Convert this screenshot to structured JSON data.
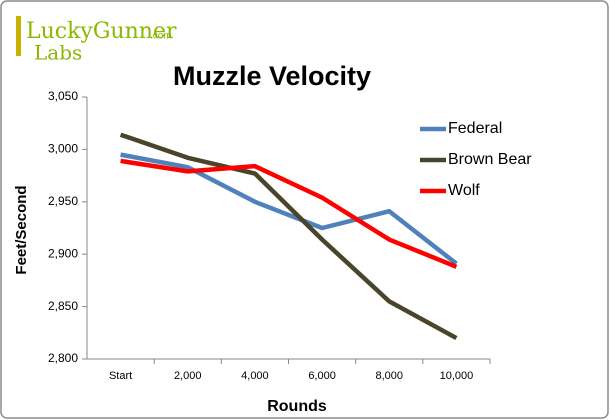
{
  "logo": {
    "brand": "LuckyGunner",
    "suffix": ".com",
    "sub": "Labs"
  },
  "chart_data": {
    "type": "line",
    "title": "Muzzle Velocity",
    "x_label": "Rounds",
    "y_label": "Feet/Second",
    "categories": [
      "Start",
      "2,000",
      "4,000",
      "6,000",
      "8,000",
      "10,000"
    ],
    "series": [
      {
        "name": "Federal",
        "color": "#4f81bd",
        "values": [
          2995,
          2983,
          2950,
          2925,
          2941,
          2891
        ]
      },
      {
        "name": "Brown Bear",
        "color": "#4a452a",
        "values": [
          3014,
          2992,
          2977,
          2914,
          2855,
          2820
        ]
      },
      {
        "name": "Wolf",
        "color": "#ff0000",
        "values": [
          2989,
          2979,
          2984,
          2954,
          2914,
          2888
        ]
      }
    ],
    "ylim": [
      2800,
      3050
    ],
    "yticks": [
      {
        "value": 2800,
        "label": "2,800"
      },
      {
        "value": 2850,
        "label": "2,850"
      },
      {
        "value": 2900,
        "label": "2,900"
      },
      {
        "value": 2950,
        "label": "2,950"
      },
      {
        "value": 3000,
        "label": "3,000"
      },
      {
        "value": 3050,
        "label": "3,050"
      }
    ],
    "grid": false,
    "legend": "right"
  }
}
